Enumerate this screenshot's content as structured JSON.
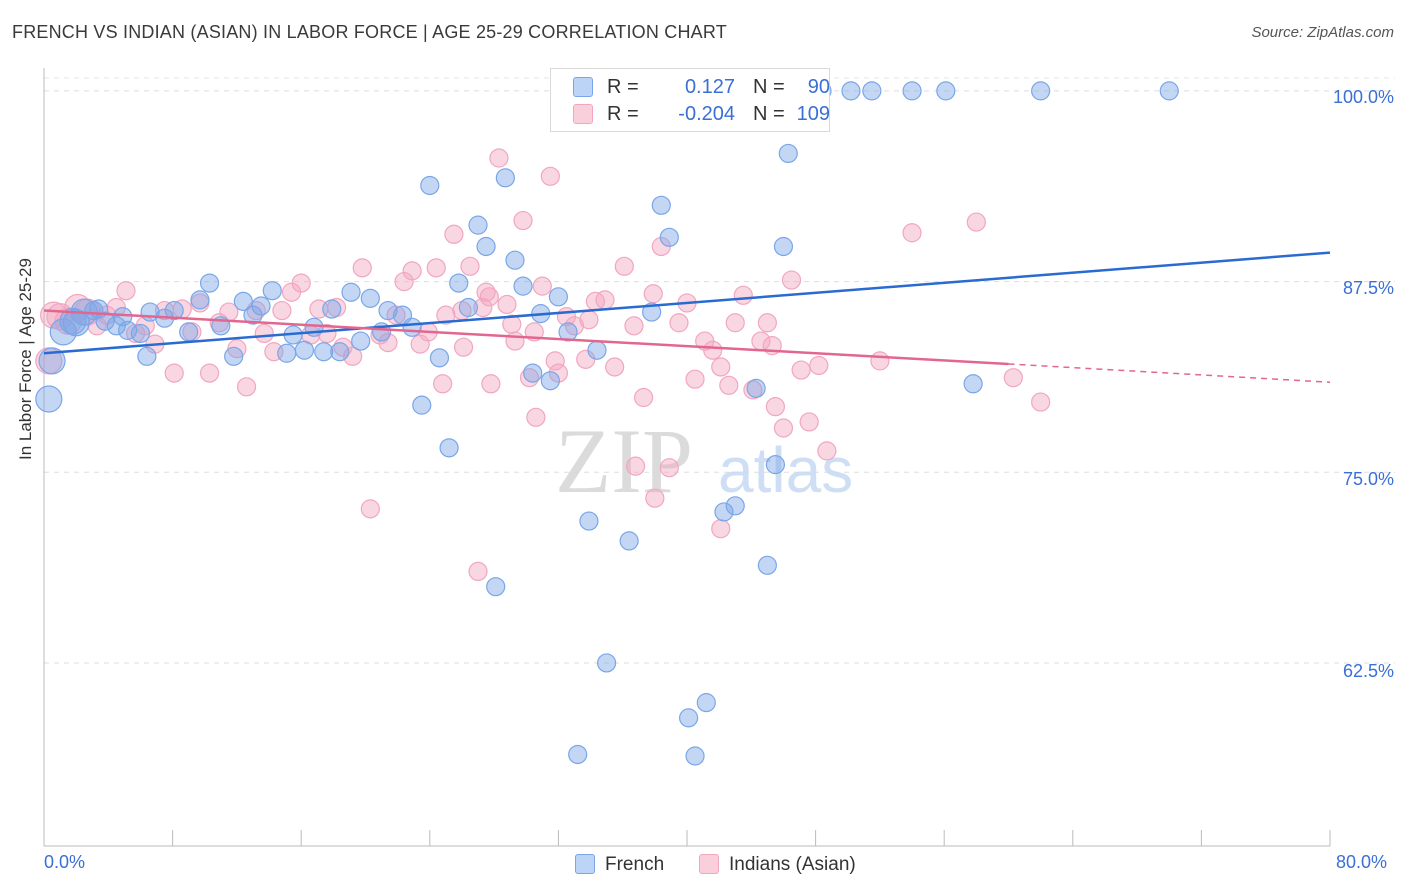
{
  "header": {
    "title": "FRENCH VS INDIAN (ASIAN) IN LABOR FORCE | AGE 25-29 CORRELATION CHART",
    "source": "Source: ZipAtlas.com"
  },
  "legend": {
    "french": {
      "r_label": "R =",
      "r_value": "0.127",
      "n_label": "N =",
      "n_value": "90"
    },
    "indian": {
      "r_label": "R =",
      "r_value": "-0.204",
      "n_label": "N =",
      "n_value": "109"
    }
  },
  "colors": {
    "french": "#7aa6e8",
    "french_line": "#2a6bd1",
    "indian": "#f2a6bf",
    "indian_line": "#e3668f",
    "axis_text": "#3a6fd6"
  },
  "watermark": {
    "zip": "ZIP",
    "atlas": "atlas"
  },
  "chart_data": {
    "type": "scatter",
    "title": "FRENCH VS INDIAN (ASIAN) IN LABOR FORCE | AGE 25-29 CORRELATION CHART",
    "xlabel": "",
    "ylabel": "In Labor Force | Age 25-29",
    "xlim": [
      0,
      80
    ],
    "ylim": [
      50.5,
      101.5
    ],
    "x_tick_labels": [
      "0.0%",
      "80.0%"
    ],
    "y_tick_labels": [
      "100.0%",
      "87.5%",
      "75.0%",
      "62.5%"
    ],
    "y_ticks": [
      100,
      87.5,
      75,
      62.5
    ],
    "grid": true,
    "legend_position": "bottom-center",
    "series": [
      {
        "name": "French",
        "trend": {
          "x": [
            0,
            80
          ],
          "y": [
            82.8,
            89.4
          ]
        },
        "points": [
          [
            0.3,
            79.8
          ],
          [
            0.5,
            82.3
          ],
          [
            1.2,
            84.2
          ],
          [
            1.8,
            84.9
          ],
          [
            2.5,
            85.5
          ],
          [
            3.1,
            85.6
          ],
          [
            3.8,
            84.9
          ],
          [
            4.5,
            84.6
          ],
          [
            5.2,
            84.3
          ],
          [
            6.0,
            84.1
          ],
          [
            6.4,
            82.6
          ],
          [
            7.5,
            85.1
          ],
          [
            8.1,
            85.6
          ],
          [
            9.0,
            84.2
          ],
          [
            9.7,
            86.3
          ],
          [
            10.3,
            87.4
          ],
          [
            11.0,
            84.6
          ],
          [
            11.8,
            82.6
          ],
          [
            12.4,
            86.2
          ],
          [
            13.0,
            85.3
          ],
          [
            13.5,
            85.9
          ],
          [
            14.2,
            86.9
          ],
          [
            15.1,
            82.8
          ],
          [
            15.5,
            84.0
          ],
          [
            16.2,
            83.0
          ],
          [
            16.8,
            84.5
          ],
          [
            17.4,
            82.9
          ],
          [
            17.9,
            85.7
          ],
          [
            18.4,
            82.9
          ],
          [
            19.1,
            86.8
          ],
          [
            19.7,
            83.6
          ],
          [
            20.3,
            86.4
          ],
          [
            21.0,
            84.2
          ],
          [
            21.4,
            85.6
          ],
          [
            22.3,
            85.3
          ],
          [
            22.9,
            84.5
          ],
          [
            23.5,
            79.4
          ],
          [
            24.0,
            93.8
          ],
          [
            24.6,
            82.5
          ],
          [
            25.2,
            76.6
          ],
          [
            25.8,
            87.4
          ],
          [
            26.4,
            85.8
          ],
          [
            27.0,
            91.2
          ],
          [
            27.5,
            89.8
          ],
          [
            28.1,
            67.5
          ],
          [
            28.7,
            94.3
          ],
          [
            29.3,
            88.9
          ],
          [
            29.8,
            87.2
          ],
          [
            30.4,
            81.5
          ],
          [
            30.9,
            85.4
          ],
          [
            31.5,
            81.0
          ],
          [
            32.0,
            86.5
          ],
          [
            32.6,
            84.2
          ],
          [
            33.2,
            56.5
          ],
          [
            33.9,
            71.8
          ],
          [
            34.4,
            83.0
          ],
          [
            35.0,
            62.5
          ],
          [
            35.8,
            100.0
          ],
          [
            36.4,
            70.5
          ],
          [
            37.1,
            100.0
          ],
          [
            37.8,
            85.5
          ],
          [
            38.4,
            92.5
          ],
          [
            38.9,
            90.4
          ],
          [
            39.4,
            100.0
          ],
          [
            40.1,
            58.9
          ],
          [
            40.5,
            56.4
          ],
          [
            41.2,
            59.9
          ],
          [
            41.8,
            100.0
          ],
          [
            42.3,
            72.4
          ],
          [
            43.0,
            72.8
          ],
          [
            43.6,
            100.0
          ],
          [
            44.3,
            80.5
          ],
          [
            45.0,
            68.9
          ],
          [
            45.5,
            75.5
          ],
          [
            46.0,
            89.8
          ],
          [
            46.3,
            95.9
          ],
          [
            47.0,
            100.0
          ],
          [
            47.5,
            100.0
          ],
          [
            48.4,
            100.0
          ],
          [
            50.2,
            100.0
          ],
          [
            51.5,
            100.0
          ],
          [
            54.0,
            100.0
          ],
          [
            56.1,
            100.0
          ],
          [
            57.8,
            80.8
          ],
          [
            62.0,
            100.0
          ],
          [
            70.0,
            100.0
          ],
          [
            2.0,
            84.8
          ],
          [
            3.4,
            85.7
          ],
          [
            4.9,
            85.2
          ],
          [
            6.6,
            85.5
          ]
        ]
      },
      {
        "name": "Indians (Asian)",
        "trend": {
          "x": [
            0,
            60
          ],
          "y": [
            85.6,
            82.1
          ]
        },
        "trend_dashed": {
          "x": [
            60,
            80
          ],
          "y": [
            82.1,
            80.9
          ]
        },
        "points": [
          [
            0.3,
            82.3
          ],
          [
            0.6,
            85.3
          ],
          [
            1.0,
            85.2
          ],
          [
            1.5,
            84.9
          ],
          [
            2.1,
            85.8
          ],
          [
            2.7,
            85.5
          ],
          [
            3.3,
            84.6
          ],
          [
            3.9,
            85.3
          ],
          [
            4.5,
            85.8
          ],
          [
            5.1,
            86.9
          ],
          [
            5.7,
            84.1
          ],
          [
            6.3,
            84.6
          ],
          [
            6.9,
            83.4
          ],
          [
            7.5,
            85.6
          ],
          [
            8.1,
            81.5
          ],
          [
            8.6,
            85.7
          ],
          [
            9.2,
            84.2
          ],
          [
            9.7,
            86.1
          ],
          [
            10.3,
            81.5
          ],
          [
            10.9,
            84.8
          ],
          [
            11.5,
            85.5
          ],
          [
            12.0,
            83.1
          ],
          [
            12.6,
            80.6
          ],
          [
            13.2,
            85.6
          ],
          [
            13.7,
            84.1
          ],
          [
            14.3,
            82.9
          ],
          [
            14.8,
            85.6
          ],
          [
            15.4,
            86.8
          ],
          [
            16.0,
            87.4
          ],
          [
            16.6,
            84.0
          ],
          [
            17.1,
            85.7
          ],
          [
            17.6,
            84.1
          ],
          [
            18.2,
            85.8
          ],
          [
            18.6,
            83.2
          ],
          [
            19.2,
            82.6
          ],
          [
            19.8,
            88.4
          ],
          [
            20.3,
            72.6
          ],
          [
            20.9,
            84.0
          ],
          [
            21.4,
            83.5
          ],
          [
            21.9,
            85.3
          ],
          [
            22.4,
            87.5
          ],
          [
            22.9,
            88.2
          ],
          [
            23.4,
            83.4
          ],
          [
            23.9,
            84.2
          ],
          [
            24.4,
            88.4
          ],
          [
            25.0,
            85.3
          ],
          [
            25.5,
            90.6
          ],
          [
            26.0,
            85.6
          ],
          [
            26.5,
            88.5
          ],
          [
            27.0,
            68.5
          ],
          [
            27.5,
            86.8
          ],
          [
            27.8,
            80.8
          ],
          [
            28.3,
            95.6
          ],
          [
            28.8,
            86.0
          ],
          [
            29.3,
            83.6
          ],
          [
            29.8,
            91.5
          ],
          [
            30.2,
            81.2
          ],
          [
            30.6,
            78.6
          ],
          [
            31.0,
            87.2
          ],
          [
            31.5,
            94.4
          ],
          [
            32.0,
            81.5
          ],
          [
            32.5,
            85.2
          ],
          [
            33.0,
            84.6
          ],
          [
            33.7,
            82.4
          ],
          [
            34.3,
            86.2
          ],
          [
            34.9,
            86.3
          ],
          [
            35.5,
            81.9
          ],
          [
            36.1,
            88.5
          ],
          [
            36.7,
            84.6
          ],
          [
            37.3,
            79.9
          ],
          [
            37.9,
            86.7
          ],
          [
            38.4,
            89.8
          ],
          [
            38.9,
            75.3
          ],
          [
            39.5,
            84.8
          ],
          [
            40.0,
            86.1
          ],
          [
            40.5,
            81.1
          ],
          [
            41.1,
            83.6
          ],
          [
            41.6,
            83.0
          ],
          [
            42.1,
            81.9
          ],
          [
            42.6,
            80.7
          ],
          [
            43.0,
            84.8
          ],
          [
            43.5,
            86.6
          ],
          [
            44.1,
            80.4
          ],
          [
            44.6,
            83.6
          ],
          [
            45.0,
            84.8
          ],
          [
            45.5,
            79.3
          ],
          [
            46.0,
            77.9
          ],
          [
            46.5,
            87.6
          ],
          [
            47.1,
            81.7
          ],
          [
            47.6,
            78.3
          ],
          [
            48.2,
            82.0
          ],
          [
            48.7,
            76.4
          ],
          [
            52.0,
            82.3
          ],
          [
            54.0,
            90.7
          ],
          [
            58.0,
            91.4
          ],
          [
            60.3,
            81.2
          ],
          [
            62.0,
            79.6
          ],
          [
            42.1,
            71.3
          ],
          [
            45.3,
            83.3
          ],
          [
            38.0,
            73.3
          ],
          [
            36.8,
            75.4
          ],
          [
            30.5,
            84.2
          ],
          [
            31.8,
            82.3
          ],
          [
            33.9,
            85.0
          ],
          [
            24.8,
            80.8
          ],
          [
            26.1,
            83.2
          ],
          [
            27.3,
            85.8
          ],
          [
            29.1,
            84.7
          ],
          [
            27.7,
            86.5
          ]
        ]
      }
    ]
  }
}
